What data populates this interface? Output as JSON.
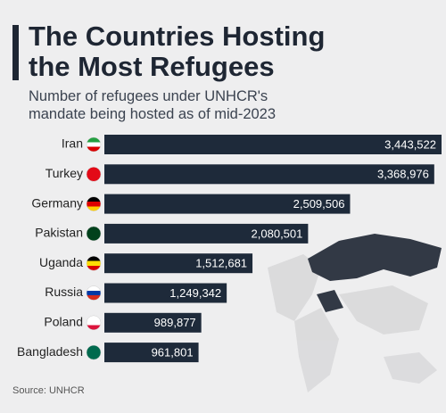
{
  "chart_data": {
    "type": "bar",
    "orientation": "horizontal",
    "title": "The Countries Hosting the Most Refugees",
    "subtitle": "Number of refugees under UNHCR's mandate being hosted as of mid-2023",
    "source": "Source: UNHCR",
    "categories": [
      "Iran",
      "Turkey",
      "Germany",
      "Pakistan",
      "Uganda",
      "Russia",
      "Poland",
      "Bangladesh"
    ],
    "values": [
      3443522,
      3368976,
      2509506,
      2080501,
      1512681,
      1249342,
      989877,
      961801
    ],
    "value_labels": [
      "3,443,522",
      "3,368,976",
      "2,509,506",
      "2,080,501",
      "1,512,681",
      "1,249,342",
      "989,877",
      "961,801"
    ],
    "color": "#1e2a3a"
  }
}
